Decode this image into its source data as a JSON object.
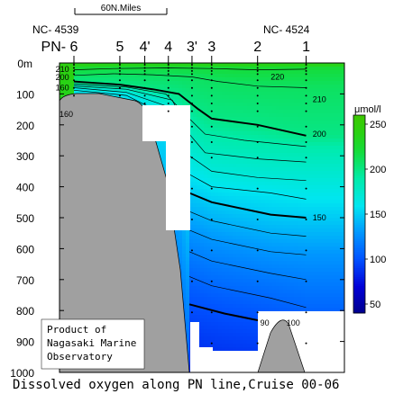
{
  "chart_data": {
    "type": "heatmap",
    "title": "Dissolved oxygen along PN line,Cruise 00-06",
    "colorbar_label": "μmol/l",
    "colorbar_ticks": [
      50,
      100,
      150,
      200,
      250
    ],
    "colorbar_range": [
      40,
      260
    ],
    "y_ticks": [
      "0m",
      "100",
      "200",
      "300",
      "400",
      "500",
      "600",
      "700",
      "800",
      "900",
      "1000"
    ],
    "y_range_m": [
      0,
      1000
    ],
    "scale_bar_label": "60N.Miles",
    "station_ids_left": "NC- 4539",
    "station_ids_right": "NC- 4524",
    "stations": [
      {
        "label": "PN- 6",
        "distance_nm": 0
      },
      {
        "label": "5",
        "distance_nm": 35
      },
      {
        "label": "4'",
        "distance_nm": 54
      },
      {
        "label": "4",
        "distance_nm": 72
      },
      {
        "label": "3'",
        "distance_nm": 90
      },
      {
        "label": "3",
        "distance_nm": 105
      },
      {
        "label": "2",
        "distance_nm": 140
      },
      {
        "label": "1",
        "distance_nm": 177
      }
    ],
    "contour_labels": [
      {
        "text": "210",
        "distance_nm": -14,
        "depth_m": 20
      },
      {
        "text": "200",
        "distance_nm": -14,
        "depth_m": 47
      },
      {
        "text": "160",
        "distance_nm": -14,
        "depth_m": 80
      },
      {
        "text": "160",
        "distance_nm": -11,
        "depth_m": 165
      },
      {
        "text": "220",
        "distance_nm": 150,
        "depth_m": 45
      },
      {
        "text": "210",
        "distance_nm": 182,
        "depth_m": 118
      },
      {
        "text": "200",
        "distance_nm": 182,
        "depth_m": 230
      },
      {
        "text": "150",
        "distance_nm": 182,
        "depth_m": 500
      },
      {
        "text": "90",
        "distance_nm": 142,
        "depth_m": 840
      },
      {
        "text": "100",
        "distance_nm": 162,
        "depth_m": 840
      }
    ],
    "contours": [
      {
        "value": 220,
        "points": [
          [
            0,
            22
          ],
          [
            30,
            18
          ],
          [
            70,
            16
          ],
          [
            105,
            18
          ],
          [
            140,
            22
          ],
          [
            177,
            20
          ]
        ]
      },
      {
        "value": 210,
        "points": [
          [
            0,
            40
          ],
          [
            30,
            35
          ],
          [
            60,
            38
          ],
          [
            90,
            45
          ],
          [
            110,
            60
          ],
          [
            140,
            75
          ],
          [
            177,
            80
          ]
        ]
      },
      {
        "value": 200,
        "points": [
          [
            0,
            60
          ],
          [
            35,
            70
          ],
          [
            60,
            85
          ],
          [
            80,
            100
          ],
          [
            95,
            150
          ],
          [
            105,
            180
          ],
          [
            140,
            200
          ],
          [
            177,
            235
          ]
        ]
      },
      {
        "value": 190,
        "points": [
          [
            0,
            68
          ],
          [
            40,
            78
          ],
          [
            70,
            100
          ],
          [
            88,
            180
          ],
          [
            100,
            230
          ],
          [
            130,
            250
          ],
          [
            177,
            270
          ]
        ]
      },
      {
        "value": 180,
        "points": [
          [
            0,
            74
          ],
          [
            40,
            85
          ],
          [
            75,
            120
          ],
          [
            88,
            230
          ],
          [
            100,
            290
          ],
          [
            140,
            310
          ],
          [
            177,
            320
          ]
        ]
      },
      {
        "value": 170,
        "points": [
          [
            0,
            80
          ],
          [
            40,
            95
          ],
          [
            78,
            150
          ],
          [
            88,
            300
          ],
          [
            105,
            350
          ],
          [
            140,
            370
          ],
          [
            177,
            380
          ]
        ]
      },
      {
        "value": 160,
        "points": [
          [
            0,
            88
          ],
          [
            40,
            105
          ],
          [
            80,
            190
          ],
          [
            88,
            360
          ],
          [
            105,
            400
          ],
          [
            150,
            420
          ],
          [
            177,
            440
          ]
        ]
      },
      {
        "value": 150,
        "points": [
          [
            88,
            420
          ],
          [
            105,
            450
          ],
          [
            150,
            490
          ],
          [
            177,
            500
          ]
        ]
      },
      {
        "value": 140,
        "points": [
          [
            88,
            480
          ],
          [
            105,
            510
          ],
          [
            150,
            550
          ],
          [
            177,
            560
          ]
        ]
      },
      {
        "value": 130,
        "points": [
          [
            88,
            540
          ],
          [
            105,
            570
          ],
          [
            150,
            610
          ],
          [
            177,
            620
          ]
        ]
      },
      {
        "value": 120,
        "points": [
          [
            88,
            610
          ],
          [
            105,
            640
          ],
          [
            150,
            680
          ],
          [
            177,
            700
          ]
        ]
      },
      {
        "value": 110,
        "points": [
          [
            88,
            690
          ],
          [
            105,
            720
          ],
          [
            150,
            760
          ],
          [
            177,
            790
          ]
        ]
      },
      {
        "value": 100,
        "points": [
          [
            88,
            780
          ],
          [
            115,
            810
          ],
          [
            150,
            840
          ],
          [
            177,
            850
          ]
        ]
      }
    ],
    "grid": false
  },
  "note_box": {
    "lines": [
      "Product of",
      "Nagasaki Marine",
      "Observatory"
    ]
  }
}
